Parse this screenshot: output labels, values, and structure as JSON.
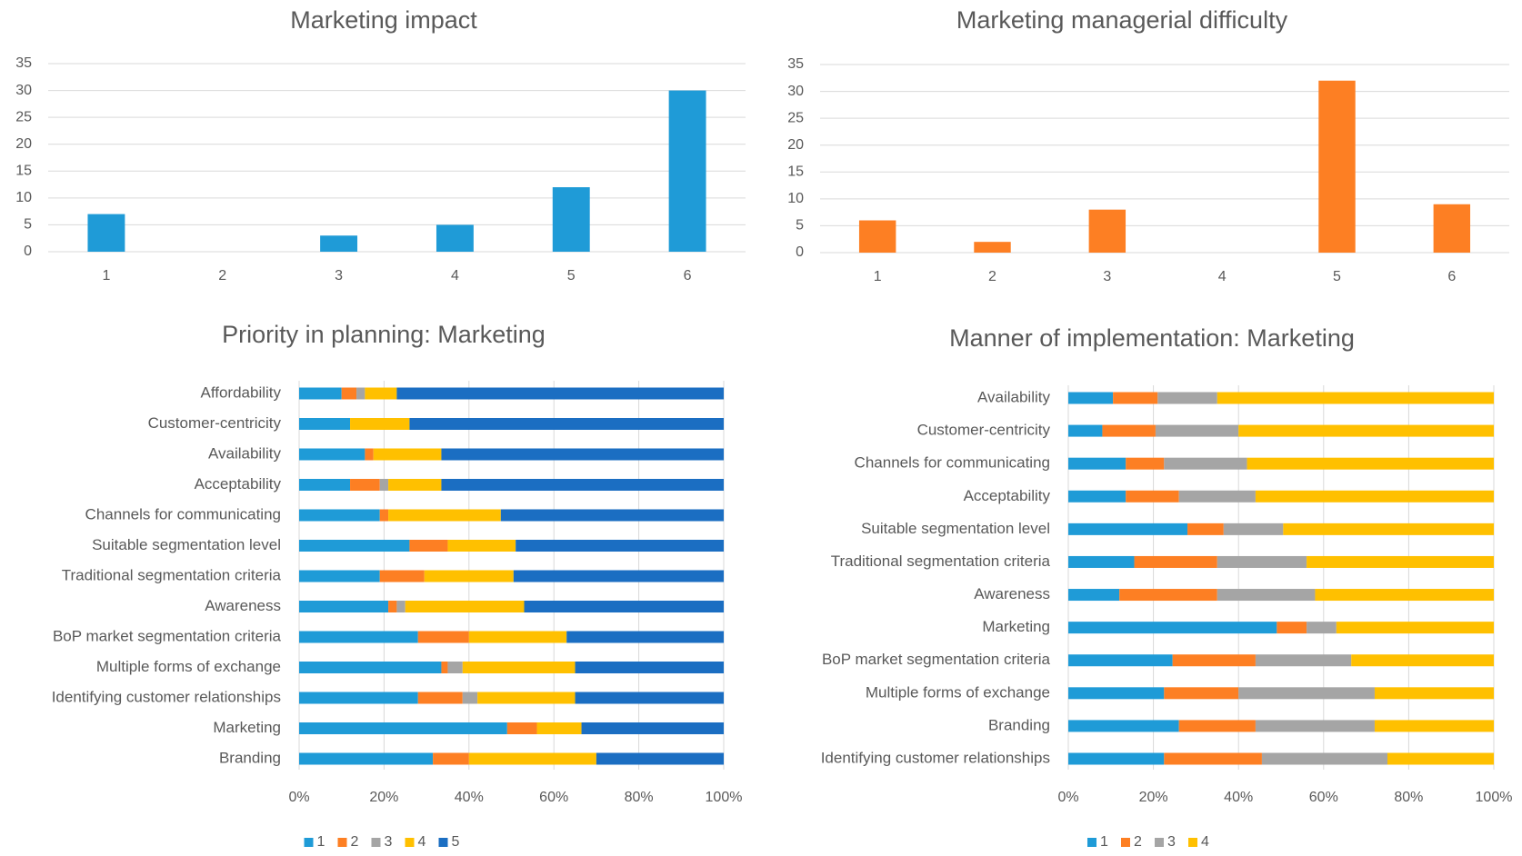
{
  "chart_data": [
    {
      "type": "bar",
      "title": "Marketing impact",
      "categories": [
        "1",
        "2",
        "3",
        "4",
        "5",
        "6"
      ],
      "values": [
        7,
        0,
        3,
        5,
        12,
        30
      ],
      "color": "#1f9bd7",
      "ylim": [
        0,
        35
      ],
      "yticks": [
        0,
        5,
        10,
        15,
        20,
        25,
        30,
        35
      ],
      "grid": true
    },
    {
      "type": "bar",
      "title": "Marketing managerial difficulty",
      "categories": [
        "1",
        "2",
        "3",
        "4",
        "5",
        "6"
      ],
      "values": [
        6,
        2,
        8,
        0,
        32,
        9
      ],
      "color": "#fd7f23",
      "ylim": [
        0,
        35
      ],
      "yticks": [
        0,
        5,
        10,
        15,
        20,
        25,
        30,
        35
      ],
      "grid": true
    },
    {
      "type": "stacked_barh",
      "title": "Priority in planning: Marketing",
      "categories": [
        "Affordability",
        "Customer-centricity",
        "Availability",
        "Acceptability",
        "Channels for communicating",
        "Suitable segmentation level",
        "Traditional segmentation criteria",
        "Awareness",
        "BoP market segmentation criteria",
        "Multiple forms of exchange",
        "Identifying customer relationships",
        "Marketing",
        "Branding"
      ],
      "series": [
        {
          "name": "1",
          "color": "#1f9bd7",
          "values": [
            10,
            12,
            15.5,
            12,
            19,
            26,
            19,
            21,
            28,
            33.5,
            28,
            49,
            31.5
          ]
        },
        {
          "name": "2",
          "color": "#fd7f23",
          "values": [
            3.5,
            0,
            2,
            7,
            2,
            9,
            10.5,
            2,
            12,
            1.5,
            10.5,
            7,
            8.5
          ]
        },
        {
          "name": "3",
          "color": "#a5a5a5",
          "values": [
            2,
            0,
            0,
            2,
            0,
            0,
            0,
            2,
            0,
            3.5,
            3.5,
            0,
            0
          ]
        },
        {
          "name": "4",
          "color": "#ffc000",
          "values": [
            7.5,
            14,
            16,
            12.5,
            26.5,
            16,
            21,
            28,
            23,
            26.5,
            23,
            10.5,
            30
          ]
        },
        {
          "name": "5",
          "color": "#1b6ec2",
          "values": [
            77,
            74,
            66.5,
            66.5,
            52.5,
            49,
            49.5,
            47,
            37,
            35,
            35,
            33.5,
            30
          ]
        }
      ],
      "xlim": [
        0,
        100
      ],
      "xticks": [
        {
          "value": 0,
          "label": "0%"
        },
        {
          "value": 20,
          "label": "20%"
        },
        {
          "value": 40,
          "label": "40%"
        },
        {
          "value": 60,
          "label": "60%"
        },
        {
          "value": 80,
          "label": "80%"
        },
        {
          "value": 100,
          "label": "100%"
        }
      ],
      "grid": true,
      "legend": "bottom"
    },
    {
      "type": "stacked_barh",
      "title": "Manner of implementation: Marketing",
      "categories": [
        "Availability",
        "Customer-centricity",
        "Channels for communicating",
        "Acceptability",
        "Suitable segmentation level",
        "Traditional segmentation criteria",
        "Awareness",
        "Marketing",
        "BoP market segmentation criteria",
        "Multiple forms of exchange",
        "Branding",
        "Identifying customer relationships"
      ],
      "series": [
        {
          "name": "1",
          "color": "#1f9bd7",
          "values": [
            10.5,
            8,
            13.5,
            13.5,
            28,
            15.5,
            12,
            49,
            24.5,
            22.5,
            26,
            22.5
          ]
        },
        {
          "name": "2",
          "color": "#fd7f23",
          "values": [
            10.5,
            12.5,
            9,
            12.5,
            8.5,
            19.5,
            23,
            7,
            19.5,
            17.5,
            18,
            23
          ]
        },
        {
          "name": "3",
          "color": "#a5a5a5",
          "values": [
            14,
            19.5,
            19.5,
            18,
            14,
            21,
            23,
            7,
            22.5,
            32,
            28,
            29.5
          ]
        },
        {
          "name": "4",
          "color": "#ffc000",
          "values": [
            65,
            60,
            58,
            56,
            49.5,
            44,
            42,
            37,
            33.5,
            28,
            28,
            25
          ]
        }
      ],
      "xlim": [
        0,
        100
      ],
      "xticks": [
        {
          "value": 0,
          "label": "0%"
        },
        {
          "value": 20,
          "label": "20%"
        },
        {
          "value": 40,
          "label": "40%"
        },
        {
          "value": 60,
          "label": "60%"
        },
        {
          "value": 80,
          "label": "80%"
        },
        {
          "value": 100,
          "label": "100%"
        }
      ],
      "grid": true,
      "legend": "bottom"
    }
  ]
}
